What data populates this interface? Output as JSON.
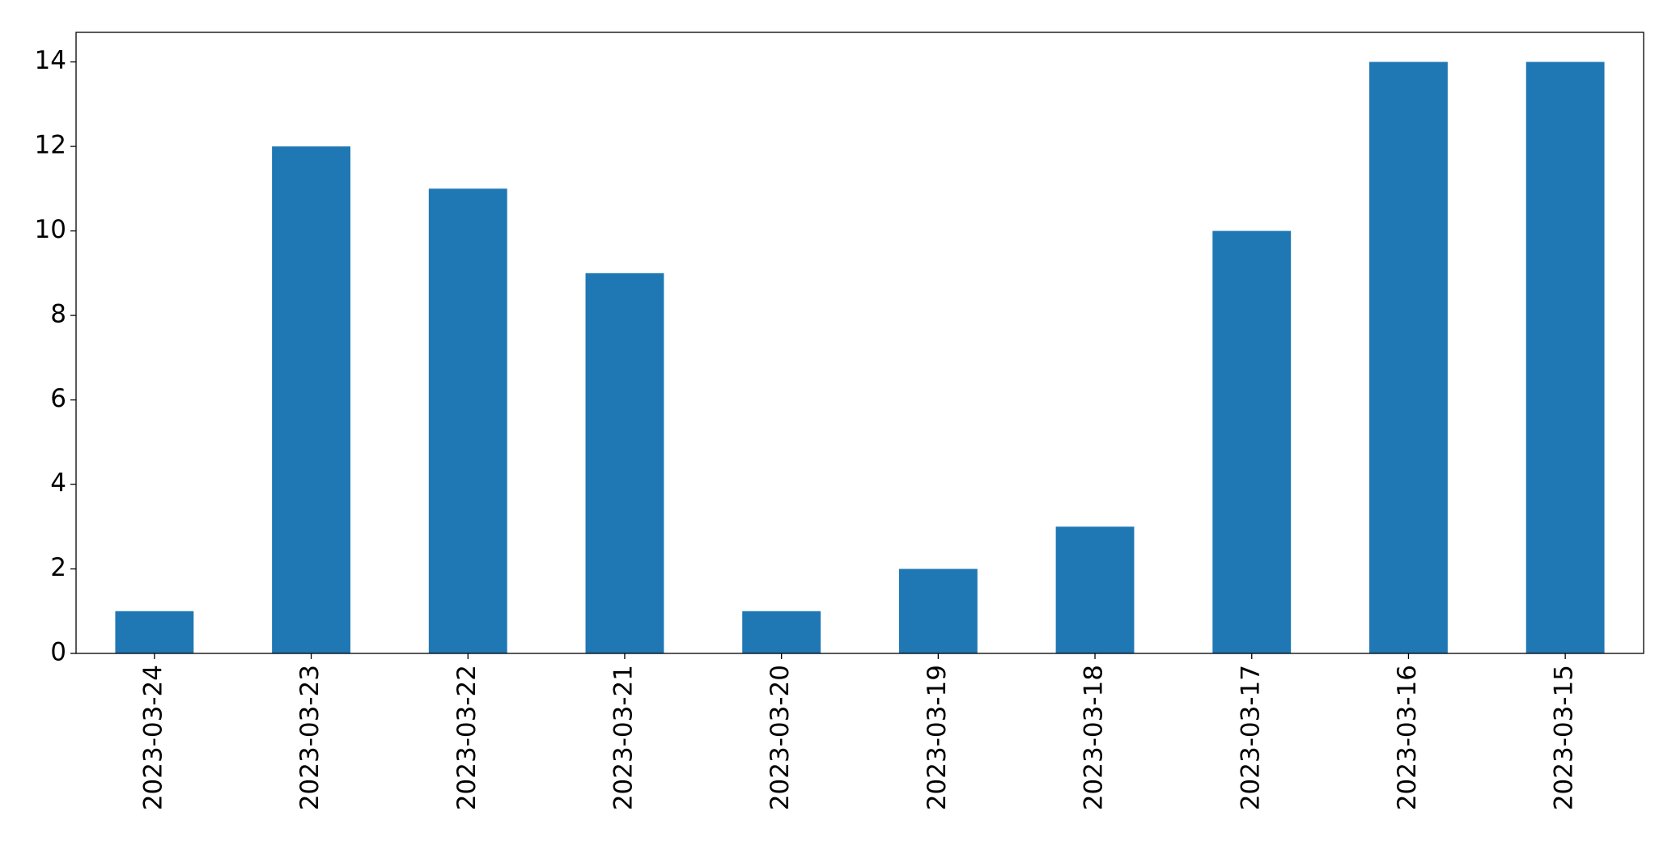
{
  "chart_data": {
    "type": "bar",
    "categories": [
      "2023-03-24",
      "2023-03-23",
      "2023-03-22",
      "2023-03-21",
      "2023-03-20",
      "2023-03-19",
      "2023-03-18",
      "2023-03-17",
      "2023-03-16",
      "2023-03-15"
    ],
    "values": [
      1,
      12,
      11,
      9,
      1,
      2,
      3,
      10,
      14,
      14
    ],
    "color": "#1f77b4",
    "ylim": [
      0,
      14.7
    ],
    "yticks": [
      0,
      2,
      4,
      6,
      8,
      10,
      12,
      14
    ],
    "grid": false
  }
}
